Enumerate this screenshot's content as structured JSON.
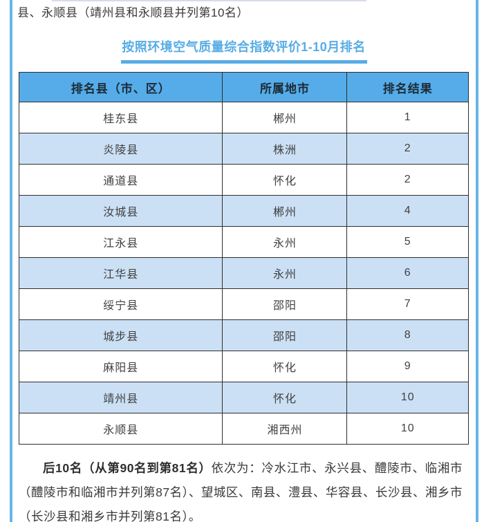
{
  "intro": {
    "text": "县、永顺县（靖州县和永顺县并列第10名）"
  },
  "heading": {
    "title": "按照环境空气质量综合指数评价1-10月排名"
  },
  "table": {
    "headers": [
      "排名县（市、区）",
      "所属地市",
      "排名结果"
    ],
    "rows": [
      [
        "桂东县",
        "郴州",
        "1"
      ],
      [
        "炎陵县",
        "株洲",
        "2"
      ],
      [
        "通道县",
        "怀化",
        "2"
      ],
      [
        "汝城县",
        "郴州",
        "4"
      ],
      [
        "江永县",
        "永州",
        "5"
      ],
      [
        "江华县",
        "永州",
        "6"
      ],
      [
        "绥宁县",
        "邵阳",
        "7"
      ],
      [
        "城步县",
        "邵阳",
        "8"
      ],
      [
        "麻阳县",
        "怀化",
        "9"
      ],
      [
        "靖州县",
        "怀化",
        "10"
      ],
      [
        "永顺县",
        "湘西州",
        "10"
      ]
    ]
  },
  "footer": {
    "bold_lead": "后10名（从第90名到第81名）",
    "body": "依次为：冷水江市、永兴县、醴陵市、临湘市（醴陵市和临湘市并列第87名）、望城区、南县、澧县、华容县、长沙县、湘乡市（长沙县和湘乡市并列第81名）。"
  },
  "colors": {
    "header_bg": "#55ACE8",
    "alt_row_bg": "#CBE0F5",
    "accent_blue": "#58ACE5",
    "side_line_blue": "#66B4E7",
    "table_border": "#2D2D2D",
    "body_text": "#3A3A3A"
  }
}
